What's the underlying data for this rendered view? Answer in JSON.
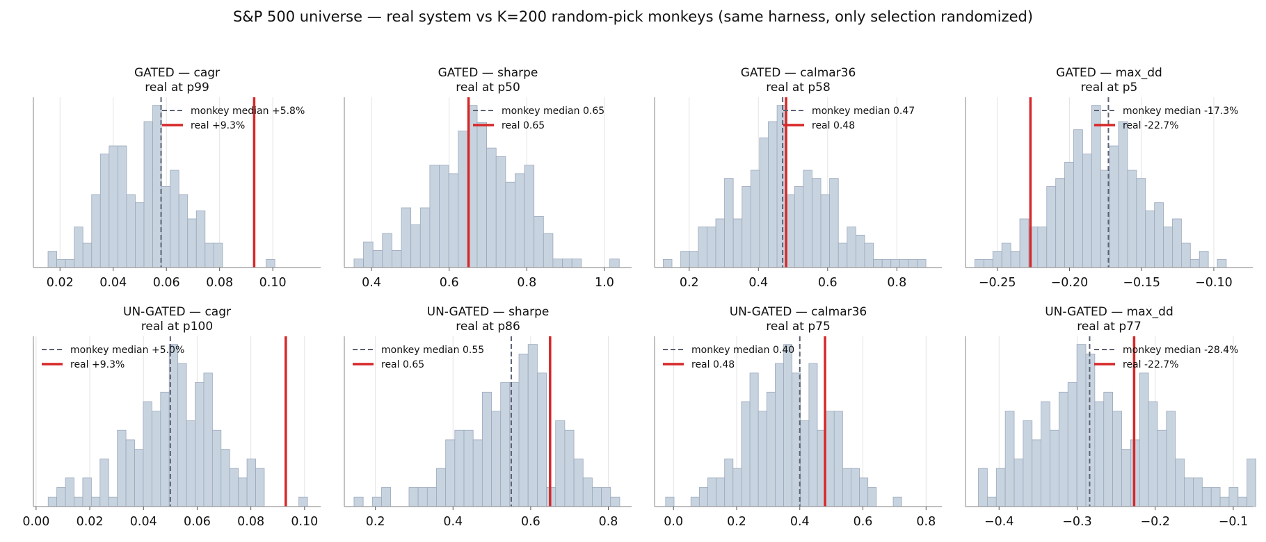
{
  "suptitle": "S&P 500 universe — real system vs K=200 random-pick monkeys (same harness, only selection randomized)",
  "colors": {
    "bar_fill": "#c8d3e0",
    "bar_edge": "#9aa8bb",
    "median_line": "#5c6273",
    "real_line": "#d62728",
    "grid": "#e3e3e3",
    "axis": "#999999"
  },
  "chart_data": [
    {
      "type": "histogram",
      "group": "GATED",
      "metric": "cagr",
      "title": "GATED — cagr",
      "subtitle": "real at p99",
      "xlim": [
        0.01,
        0.118
      ],
      "xticks": [
        0.02,
        0.04,
        0.06,
        0.08,
        0.1
      ],
      "xtick_labels": [
        "0.02",
        "0.04",
        "0.06",
        "0.08",
        "0.10"
      ],
      "bin_start": 0.0155,
      "bin_width": 0.00328,
      "counts": [
        2,
        1,
        1,
        5,
        3,
        9,
        14,
        15,
        15,
        9,
        8,
        18,
        20,
        10,
        12,
        9,
        6,
        7,
        3,
        3,
        0,
        0,
        0,
        0,
        0,
        1
      ],
      "median": 0.058,
      "real": 0.093,
      "legend": {
        "position": "upper-right",
        "median_label": "monkey median +5.8%",
        "real_label": "real +9.3%"
      }
    },
    {
      "type": "histogram",
      "group": "GATED",
      "metric": "sharpe",
      "title": "GATED — sharpe",
      "subtitle": "real at p50",
      "xlim": [
        0.33,
        1.07
      ],
      "xticks": [
        0.4,
        0.6,
        0.8,
        1.0
      ],
      "xtick_labels": [
        "0.4",
        "0.6",
        "0.8",
        "1.0"
      ],
      "bin_start": 0.355,
      "bin_width": 0.0244,
      "counts": [
        1,
        3,
        2,
        4,
        2,
        7,
        5,
        7,
        12,
        12,
        11,
        16,
        19,
        17,
        14,
        13,
        10,
        11,
        12,
        6,
        4,
        1,
        1,
        1,
        0,
        0,
        0,
        1
      ],
      "median": 0.65,
      "real": 0.65,
      "legend": {
        "position": "upper-right",
        "median_label": "monkey median 0.65",
        "real_label": "real 0.65"
      }
    },
    {
      "type": "histogram",
      "group": "GATED",
      "metric": "calmar36",
      "title": "GATED — calmar36",
      "subtitle": "real at p58",
      "xlim": [
        0.1,
        0.93
      ],
      "xticks": [
        0.2,
        0.4,
        0.6,
        0.8
      ],
      "xtick_labels": [
        "0.2",
        "0.4",
        "0.6",
        "0.8"
      ],
      "bin_start": 0.125,
      "bin_width": 0.0253,
      "counts": [
        1,
        0,
        2,
        2,
        5,
        5,
        6,
        11,
        6,
        10,
        12,
        16,
        18,
        20,
        9,
        10,
        12,
        11,
        9,
        11,
        3,
        5,
        4,
        3,
        1,
        1,
        1,
        1,
        1,
        1
      ],
      "median": 0.47,
      "real": 0.48,
      "legend": {
        "position": "upper-right",
        "median_label": "monkey median 0.47",
        "real_label": "real 0.48"
      }
    },
    {
      "type": "histogram",
      "group": "GATED",
      "metric": "max_dd",
      "title": "GATED — max_dd",
      "subtitle": "real at p5",
      "xlim": [
        -0.272,
        -0.073
      ],
      "xticks": [
        -0.25,
        -0.2,
        -0.15,
        -0.1
      ],
      "xtick_labels": [
        "−0.25",
        "−0.20",
        "−0.15",
        "−0.10"
      ],
      "bin_start": -0.2655,
      "bin_width": 0.00622,
      "counts": [
        1,
        1,
        2,
        3,
        2,
        6,
        5,
        5,
        10,
        11,
        13,
        17,
        14,
        20,
        12,
        15,
        18,
        12,
        11,
        7,
        8,
        5,
        6,
        3,
        1,
        2,
        0,
        1
      ],
      "median": -0.173,
      "real": -0.227,
      "legend": {
        "position": "upper-right",
        "median_label": "monkey median -17.3%",
        "real_label": "real -22.7%"
      }
    },
    {
      "type": "histogram",
      "group": "UN-GATED",
      "metric": "cagr",
      "title": "UN-GATED — cagr",
      "subtitle": "real at p100",
      "xlim": [
        -0.001,
        0.106
      ],
      "xticks": [
        0.0,
        0.02,
        0.04,
        0.06,
        0.08,
        0.1
      ],
      "xtick_labels": [
        "0.00",
        "0.02",
        "0.04",
        "0.06",
        "0.08",
        "0.10"
      ],
      "bin_start": 0.0045,
      "bin_width": 0.00322,
      "counts": [
        1,
        2,
        3,
        1,
        3,
        1,
        5,
        1,
        8,
        7,
        6,
        11,
        10,
        12,
        17,
        15,
        9,
        13,
        14,
        8,
        6,
        4,
        3,
        5,
        4,
        0,
        0,
        0,
        0,
        1
      ],
      "median": 0.05,
      "real": 0.093,
      "legend": {
        "position": "upper-left",
        "median_label": "monkey median +5.0%",
        "real_label": "real +9.3%"
      }
    },
    {
      "type": "histogram",
      "group": "UN-GATED",
      "metric": "sharpe",
      "title": "UN-GATED — sharpe",
      "subtitle": "real at p86",
      "xlim": [
        0.12,
        0.86
      ],
      "xticks": [
        0.2,
        0.4,
        0.6,
        0.8
      ],
      "xtick_labels": [
        "0.2",
        "0.4",
        "0.6",
        "0.8"
      ],
      "bin_start": 0.145,
      "bin_width": 0.0236,
      "counts": [
        1,
        0,
        1,
        2,
        0,
        0,
        2,
        2,
        2,
        4,
        7,
        8,
        8,
        7,
        12,
        10,
        13,
        13,
        16,
        17,
        14,
        2,
        9,
        8,
        5,
        3,
        2,
        2,
        1
      ],
      "median": 0.55,
      "real": 0.65,
      "legend": {
        "position": "upper-left",
        "median_label": "monkey median 0.55",
        "real_label": "real 0.65"
      }
    },
    {
      "type": "histogram",
      "group": "UN-GATED",
      "metric": "calmar36",
      "title": "UN-GATED — calmar36",
      "subtitle": "real at p75",
      "xlim": [
        -0.06,
        0.85
      ],
      "xticks": [
        0.0,
        0.2,
        0.4,
        0.6,
        0.8
      ],
      "xtick_labels": [
        "0.0",
        "0.2",
        "0.4",
        "0.6",
        "0.8"
      ],
      "bin_start": -0.025,
      "bin_width": 0.0267,
      "counts": [
        1,
        0,
        0,
        1,
        2,
        3,
        3,
        5,
        4,
        11,
        14,
        10,
        12,
        15,
        17,
        14,
        9,
        15,
        8,
        10,
        10,
        4,
        4,
        3,
        2,
        0,
        0,
        1
      ],
      "median": 0.4,
      "real": 0.48,
      "legend": {
        "position": "upper-left",
        "median_label": "monkey median 0.40",
        "real_label": "real 0.48"
      }
    },
    {
      "type": "histogram",
      "group": "UN-GATED",
      "metric": "max_dd",
      "title": "UN-GATED — max_dd",
      "subtitle": "real at p77",
      "xlim": [
        -0.443,
        -0.075
      ],
      "xticks": [
        -0.4,
        -0.3,
        -0.2,
        -0.1
      ],
      "xtick_labels": [
        "−0.4",
        "−0.3",
        "−0.2",
        "−0.1"
      ],
      "bin_start": -0.4265,
      "bin_width": 0.01147,
      "counts": [
        4,
        1,
        4,
        10,
        5,
        9,
        7,
        11,
        8,
        12,
        13,
        17,
        16,
        11,
        12,
        10,
        6,
        7,
        14,
        11,
        8,
        10,
        5,
        3,
        3,
        2,
        2,
        1,
        2,
        1,
        5
      ],
      "median": -0.284,
      "real": -0.227,
      "legend": {
        "position": "upper-right",
        "median_label": "monkey median -28.4%",
        "real_label": "real -22.7%"
      }
    }
  ]
}
